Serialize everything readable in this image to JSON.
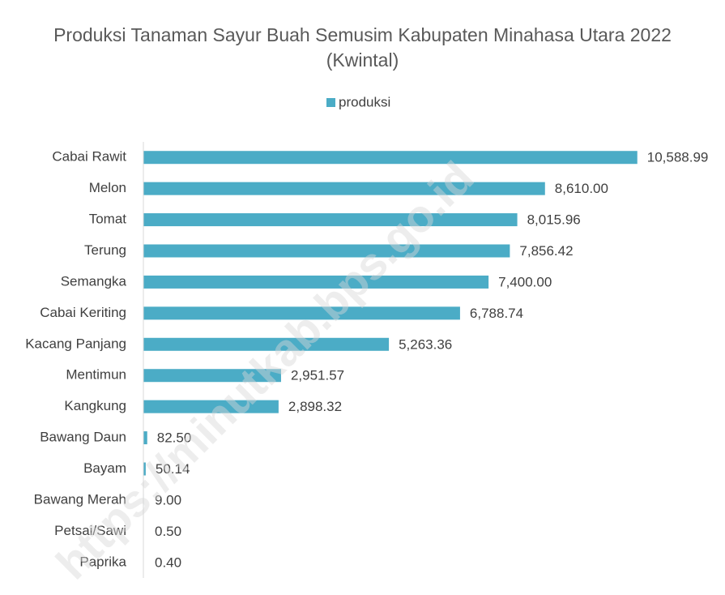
{
  "chart_data": {
    "type": "bar",
    "orientation": "horizontal",
    "title": "Produksi Tanaman Sayur Buah Semusim Kabupaten Minahasa Utara 2022 (Kwintal)",
    "watermark": "https://minutkab.bps.go.id",
    "legend": "top",
    "categories": [
      "Cabai Rawit",
      "Melon",
      "Tomat",
      "Terung",
      "Semangka",
      "Cabai Keriting",
      "Kacang Panjang",
      "Mentimun",
      "Kangkung",
      "Bawang Daun",
      "Bayam",
      "Bawang Merah",
      "Petsai/Sawi",
      "Paprika"
    ],
    "series": [
      {
        "name": "produksi",
        "color": "#4bacc6",
        "values": [
          10588.99,
          8610.0,
          8015.96,
          7856.42,
          7400.0,
          6788.74,
          5263.36,
          2951.57,
          2898.32,
          82.5,
          50.14,
          9.0,
          0.5,
          0.4
        ],
        "value_labels": [
          "10,588.99",
          "8,610.00",
          "8,015.96",
          "7,856.42",
          "7,400.00",
          "6,788.74",
          "5,263.36",
          "2,951.57",
          "2,898.32",
          "82.50",
          "50.14",
          "9.00",
          "0.50",
          "0.40"
        ]
      }
    ],
    "xlim": [
      0,
      12000
    ]
  }
}
